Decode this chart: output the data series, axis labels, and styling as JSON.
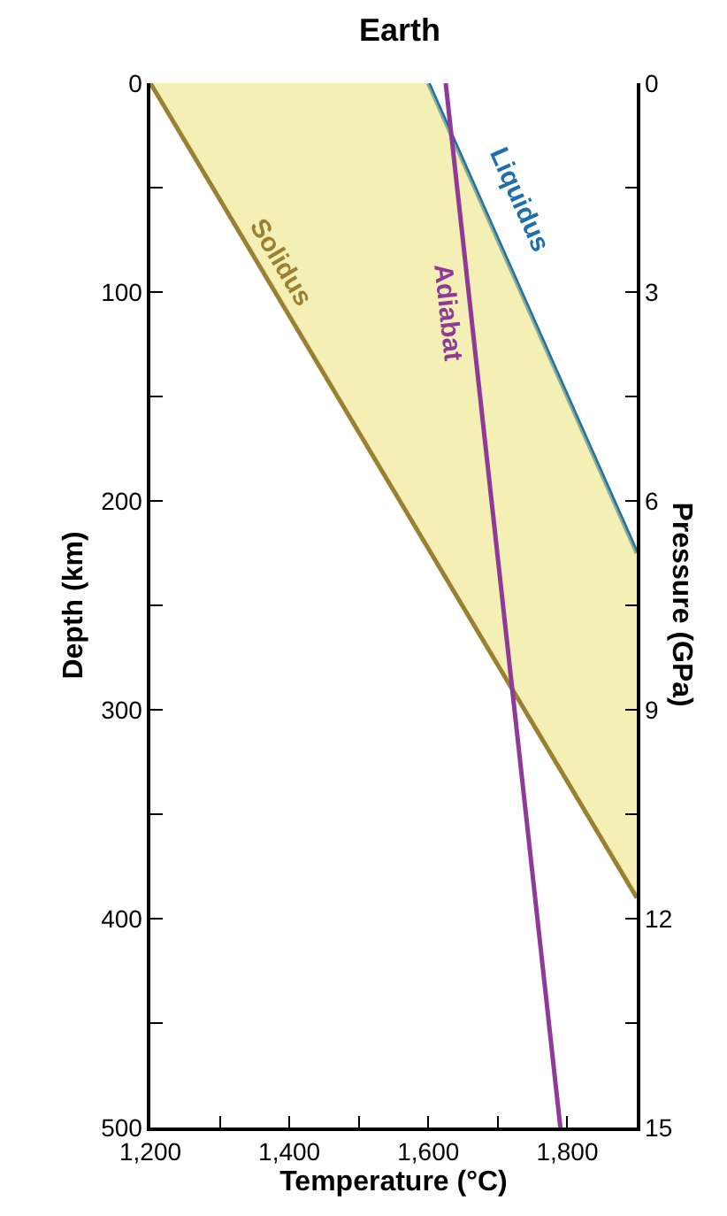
{
  "chart_data": {
    "type": "line",
    "title": "Earth",
    "xlabel": "Temperature (°C)",
    "ylabel": "Depth (km)",
    "y2label": "Pressure (GPa)",
    "xlim": [
      1200,
      1900
    ],
    "xticks": [
      {
        "value": 1200,
        "label": "1,200"
      },
      {
        "value": 1300,
        "label": null
      },
      {
        "value": 1400,
        "label": "1,400"
      },
      {
        "value": 1500,
        "label": null
      },
      {
        "value": 1600,
        "label": "1,600"
      },
      {
        "value": 1700,
        "label": null
      },
      {
        "value": 1800,
        "label": "1,800"
      }
    ],
    "ylim": [
      500,
      0
    ],
    "yticks": [
      0,
      {
        "value": 50,
        "label": null
      },
      100,
      {
        "value": 150,
        "label": null
      },
      200,
      {
        "value": 250,
        "label": null
      },
      300,
      {
        "value": 350,
        "label": null
      },
      400,
      {
        "value": 450,
        "label": null
      },
      500
    ],
    "y2lim": [
      15,
      0
    ],
    "y2ticks": [
      0,
      {
        "value": 1.5,
        "label": null
      },
      3,
      {
        "value": 4.5,
        "label": null
      },
      6,
      {
        "value": 7.5,
        "label": null
      },
      9,
      {
        "value": 10.5,
        "label": null
      },
      12,
      {
        "value": 13.5,
        "label": null
      },
      15
    ],
    "grid": false,
    "legend": false,
    "marker": "none",
    "line_style": "solid",
    "series": [
      {
        "name": "Liquidus",
        "color": "#1f6fad",
        "x": [
          1600,
          1900
        ],
        "values": [
          0,
          225
        ]
      },
      {
        "name": "Solidus",
        "type": "area",
        "color": "#9a8030",
        "x": [
          1200,
          1900
        ],
        "values": [
          0,
          390
        ]
      },
      {
        "name": "Adiabat",
        "color": "#8e3a96",
        "x": [
          1625,
          1790
        ],
        "values": [
          0,
          500
        ]
      }
    ]
  }
}
